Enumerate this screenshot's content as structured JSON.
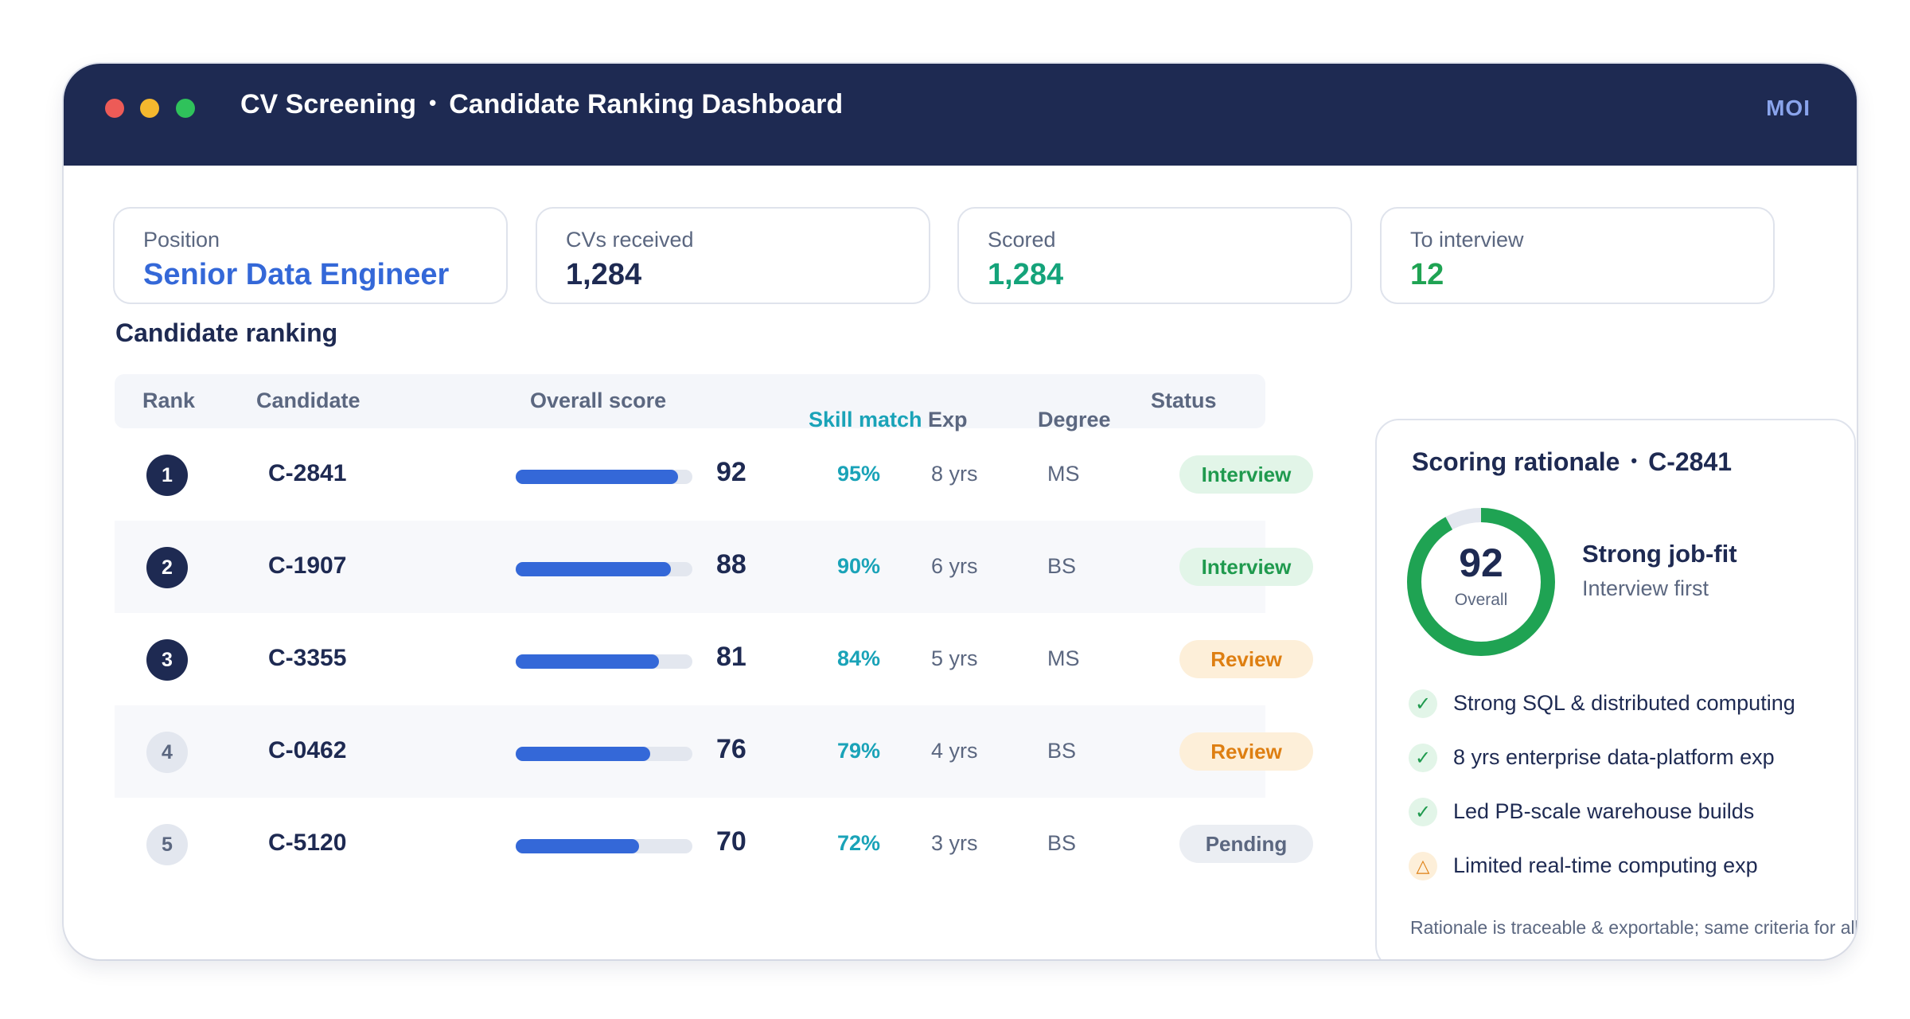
{
  "window": {
    "title_left": "CV Screening",
    "title_separator": "•",
    "title_right": "Candidate Ranking Dashboard",
    "brand": "MOI"
  },
  "stats": [
    {
      "label": "Position",
      "value": "Senior Data Engineer",
      "color": "#3468d8"
    },
    {
      "label": "CVs received",
      "value": "1,284",
      "color": "#1e2a52"
    },
    {
      "label": "Scored",
      "value": "1,284",
      "color": "#14a37a"
    },
    {
      "label": "To interview",
      "value": "12",
      "color": "#1fa353"
    }
  ],
  "ranking": {
    "title": "Candidate ranking",
    "headers": {
      "rank": "Rank",
      "candidate": "Candidate",
      "score": "Overall score",
      "skill": "Skill match",
      "exp": "Exp",
      "degree": "Degree",
      "status": "Status"
    },
    "rows": [
      {
        "rank": "1",
        "candidate": "C-2841",
        "score": 92,
        "score_label": "92",
        "skill": "95%",
        "exp": "8 yrs",
        "degree": "MS",
        "status": "Interview",
        "status_kind": "interview",
        "badge": "dark"
      },
      {
        "rank": "2",
        "candidate": "C-1907",
        "score": 88,
        "score_label": "88",
        "skill": "90%",
        "exp": "6 yrs",
        "degree": "BS",
        "status": "Interview",
        "status_kind": "interview",
        "badge": "dark"
      },
      {
        "rank": "3",
        "candidate": "C-3355",
        "score": 81,
        "score_label": "81",
        "skill": "84%",
        "exp": "5 yrs",
        "degree": "MS",
        "status": "Review",
        "status_kind": "review",
        "badge": "dark"
      },
      {
        "rank": "4",
        "candidate": "C-0462",
        "score": 76,
        "score_label": "76",
        "skill": "79%",
        "exp": "4 yrs",
        "degree": "BS",
        "status": "Review",
        "status_kind": "review",
        "badge": "light"
      },
      {
        "rank": "5",
        "candidate": "C-5120",
        "score": 70,
        "score_label": "70",
        "skill": "72%",
        "exp": "3 yrs",
        "degree": "BS",
        "status": "Pending",
        "status_kind": "pending",
        "badge": "light"
      }
    ]
  },
  "rationale": {
    "title": "Scoring rationale",
    "separator": "•",
    "candidate": "C-2841",
    "score": 92,
    "score_label": "92",
    "score_caption": "Overall",
    "verdict": "Strong job-fit",
    "verdict_sub": "Interview first",
    "reasons": [
      {
        "text": "Strong SQL & distributed computing",
        "kind": "positive",
        "icon": "check-icon",
        "glyph": "✓"
      },
      {
        "text": "8 yrs enterprise data-platform exp",
        "kind": "positive",
        "icon": "check-icon",
        "glyph": "✓"
      },
      {
        "text": "Led PB-scale warehouse builds",
        "kind": "positive",
        "icon": "check-icon",
        "glyph": "✓"
      },
      {
        "text": "Limited real-time computing exp",
        "kind": "warning",
        "icon": "warning-icon",
        "glyph": "△"
      }
    ],
    "footnote": "Rationale is traceable & exportable; same criteria for all"
  },
  "colors": {
    "navy": "#1e2a52",
    "accent_blue": "#3468d8",
    "ring_green": "#1fa353",
    "ring_track": "#e3e7ef"
  }
}
